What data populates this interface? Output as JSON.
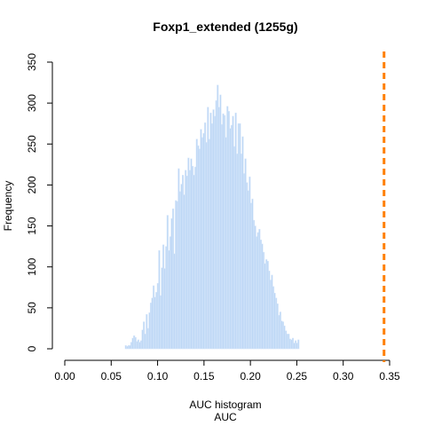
{
  "chart_data": {
    "type": "bar",
    "title": "Foxp1_extended (1255g)",
    "xlabel": "AUC histogram",
    "xlabel2": "AUC",
    "ylabel": "Frequency",
    "xlim": [
      0.0,
      0.35
    ],
    "ylim": [
      0,
      350
    ],
    "x_ticks": [
      "0.00",
      "0.05",
      "0.10",
      "0.15",
      "0.20",
      "0.25",
      "0.30",
      "0.35"
    ],
    "y_ticks": [
      "0",
      "50",
      "100",
      "150",
      "200",
      "250",
      "300",
      "350"
    ],
    "bin_start": 0.065,
    "bin_width": 0.0015,
    "counts": [
      4,
      3,
      4,
      4,
      8,
      13,
      16,
      14,
      9,
      11,
      8,
      10,
      23,
      33,
      18,
      42,
      25,
      44,
      56,
      62,
      77,
      63,
      69,
      80,
      120,
      65,
      99,
      127,
      98,
      125,
      163,
      120,
      137,
      159,
      171,
      116,
      181,
      180,
      220,
      192,
      201,
      212,
      188,
      218,
      211,
      233,
      218,
      232,
      223,
      212,
      222,
      256,
      248,
      244,
      268,
      258,
      263,
      276,
      252,
      295,
      256,
      288,
      275,
      292,
      284,
      303,
      322,
      295,
      310,
      274,
      287,
      285,
      258,
      296,
      290,
      269,
      273,
      284,
      247,
      288,
      238,
      275,
      275,
      238,
      259,
      214,
      232,
      203,
      193,
      210,
      178,
      183,
      157,
      150,
      137,
      142,
      146,
      133,
      128,
      118,
      104,
      109,
      107,
      95,
      84,
      90,
      76,
      68,
      62,
      55,
      41,
      45,
      34,
      33,
      28,
      22,
      18,
      18,
      12,
      11,
      13,
      7,
      10,
      7,
      11
    ],
    "reference_line": {
      "x": 0.344,
      "color": "#ff7f00",
      "style": "dashed"
    },
    "bar_color": "#bdd7f5",
    "grid": false
  }
}
